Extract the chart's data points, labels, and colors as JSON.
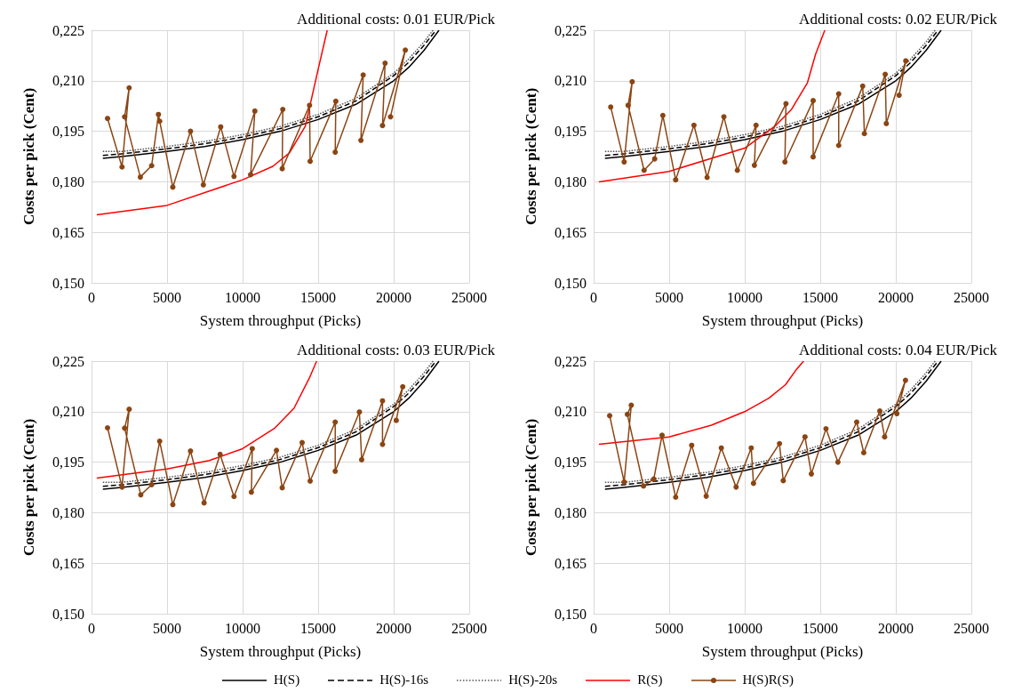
{
  "chart_data": [
    {
      "type": "line",
      "title": "Additional costs: 0.01 EUR/Pick",
      "xlabel": "System throughput (Picks)",
      "ylabel": "Costs per pick (Cent)",
      "xlim": [
        0,
        25000
      ],
      "xticks": [
        0,
        5000,
        10000,
        15000,
        20000,
        25000
      ],
      "ylim": [
        0.15,
        0.225
      ],
      "yticks": [
        {
          "value": 0.15,
          "label": "0,150"
        },
        {
          "value": 0.165,
          "label": "0,165"
        },
        {
          "value": 0.18,
          "label": "0,180"
        },
        {
          "value": 0.195,
          "label": "0,195"
        },
        {
          "value": 0.21,
          "label": "0,210"
        },
        {
          "value": 0.225,
          "label": "0,225"
        }
      ],
      "grid": true,
      "legend": "bottom",
      "x": [
        750,
        2000,
        5000,
        7500,
        10000,
        12500,
        15000,
        17500,
        20000,
        21000,
        22000,
        23000
      ],
      "series": [
        {
          "name": "H(S)",
          "color": "#000000",
          "line_style": "solid",
          "marker": "none",
          "values": [
            0.187,
            0.1875,
            0.189,
            0.1905,
            0.1925,
            0.195,
            0.1985,
            0.203,
            0.21,
            0.214,
            0.219,
            0.225
          ]
        },
        {
          "name": "H(S)-16s",
          "color": "#000000",
          "line_style": "dashed",
          "marker": "none",
          "x": [
            750,
            2000,
            5000,
            7500,
            10000,
            12500,
            15000,
            17500,
            20000,
            21000,
            22000,
            22800
          ],
          "values": [
            0.1878,
            0.1883,
            0.1898,
            0.1913,
            0.1933,
            0.1958,
            0.1993,
            0.204,
            0.2115,
            0.2155,
            0.2205,
            0.225
          ]
        },
        {
          "name": "H(S)-20s",
          "color": "#555555",
          "line_style": "dotted",
          "marker": "none",
          "x": [
            750,
            2000,
            5000,
            7500,
            10000,
            12500,
            15000,
            17500,
            20000,
            21000,
            22000,
            22600
          ],
          "values": [
            0.189,
            0.189,
            0.1905,
            0.192,
            0.194,
            0.1965,
            0.2,
            0.2048,
            0.2122,
            0.2165,
            0.2215,
            0.225
          ]
        },
        {
          "name": "R(S)",
          "color": "#ff0000",
          "line_style": "solid",
          "marker": "none",
          "x": [
            350,
            5000,
            10000,
            12000,
            13100,
            14150,
            15000,
            15600
          ],
          "values": [
            0.1702,
            0.173,
            0.1806,
            0.1846,
            0.1886,
            0.1965,
            0.2134,
            0.225
          ]
        },
        {
          "name": "H(S)R(S)",
          "color": "#8b4513",
          "line_style": "solid",
          "marker": "circle",
          "x": [
            1060,
            2020,
            2490,
            2190,
            3230,
            3980,
            4430,
            4510,
            5380,
            6550,
            7400,
            8550,
            9430,
            10810,
            10530,
            12660,
            12620,
            14430,
            14470,
            16170,
            16130,
            17980,
            17830,
            19430,
            19260,
            20770,
            19790
          ],
          "values": [
            0.1988,
            0.1844,
            0.2079,
            0.1993,
            0.1814,
            0.1848,
            0.2,
            0.198,
            0.1784,
            0.195,
            0.1791,
            0.1963,
            0.1816,
            0.201,
            0.1821,
            0.2015,
            0.1839,
            0.2027,
            0.1861,
            0.2039,
            0.1888,
            0.2117,
            0.1923,
            0.2152,
            0.1967,
            0.2191,
            0.1993
          ]
        }
      ]
    },
    {
      "type": "line",
      "title": "Additional costs: 0.02 EUR/Pick",
      "xlabel": "System throughput (Picks)",
      "ylabel": "Costs per pick (Cent)",
      "xlim": [
        0,
        25000
      ],
      "xticks": [
        0,
        5000,
        10000,
        15000,
        20000,
        25000
      ],
      "ylim": [
        0.15,
        0.225
      ],
      "yticks": [
        {
          "value": 0.15,
          "label": "0,150"
        },
        {
          "value": 0.165,
          "label": "0,165"
        },
        {
          "value": 0.18,
          "label": "0,180"
        },
        {
          "value": 0.195,
          "label": "0,195"
        },
        {
          "value": 0.21,
          "label": "0,210"
        },
        {
          "value": 0.225,
          "label": "0,225"
        }
      ],
      "grid": true,
      "legend": "bottom",
      "x": [
        750,
        2000,
        5000,
        7500,
        10000,
        12500,
        15000,
        17500,
        20000,
        21000,
        22000,
        23000
      ],
      "series": [
        {
          "name": "H(S)",
          "color": "#000000",
          "line_style": "solid",
          "marker": "none",
          "values": [
            0.187,
            0.1875,
            0.189,
            0.1905,
            0.1925,
            0.195,
            0.1985,
            0.203,
            0.21,
            0.214,
            0.219,
            0.225
          ]
        },
        {
          "name": "H(S)-16s",
          "color": "#000000",
          "line_style": "dashed",
          "marker": "none",
          "x": [
            750,
            2000,
            5000,
            7500,
            10000,
            12500,
            15000,
            17500,
            20000,
            21000,
            22000,
            22800
          ],
          "values": [
            0.1878,
            0.1883,
            0.1898,
            0.1913,
            0.1933,
            0.1958,
            0.1993,
            0.204,
            0.2115,
            0.2155,
            0.2205,
            0.225
          ]
        },
        {
          "name": "H(S)-20s",
          "color": "#555555",
          "line_style": "dotted",
          "marker": "none",
          "x": [
            750,
            2000,
            5000,
            7500,
            10000,
            12500,
            15000,
            17500,
            20000,
            21000,
            22000,
            22600
          ],
          "values": [
            0.189,
            0.189,
            0.1905,
            0.192,
            0.194,
            0.1965,
            0.2,
            0.2048,
            0.2122,
            0.2165,
            0.2215,
            0.225
          ]
        },
        {
          "name": "R(S)",
          "color": "#ff0000",
          "line_style": "solid",
          "marker": "none",
          "x": [
            350,
            5000,
            10000,
            12000,
            13100,
            14150,
            14700,
            15300
          ],
          "values": [
            0.18,
            0.1831,
            0.19,
            0.1965,
            0.2015,
            0.2094,
            0.218,
            0.225
          ]
        },
        {
          "name": "H(S)R(S)",
          "color": "#8b4513",
          "line_style": "solid",
          "marker": "circle",
          "x": [
            1130,
            2020,
            2550,
            2280,
            3340,
            4040,
            4580,
            5430,
            6640,
            7510,
            8620,
            9510,
            10750,
            10640,
            12730,
            12660,
            14530,
            14530,
            16220,
            16220,
            17810,
            17920,
            19300,
            19370,
            20660,
            20220
          ],
          "values": [
            0.2022,
            0.1859,
            0.2097,
            0.2027,
            0.1834,
            0.1868,
            0.1997,
            0.1806,
            0.1968,
            0.1813,
            0.1993,
            0.1834,
            0.1968,
            0.1849,
            0.2032,
            0.1859,
            0.2041,
            0.1874,
            0.2061,
            0.1908,
            0.2084,
            0.1943,
            0.2119,
            0.1973,
            0.2159,
            0.2057
          ]
        }
      ]
    },
    {
      "type": "line",
      "title": "Additional costs: 0.03 EUR/Pick",
      "xlabel": "System throughput (Picks)",
      "ylabel": "Costs per pick (Cent)",
      "xlim": [
        0,
        25000
      ],
      "xticks": [
        0,
        5000,
        10000,
        15000,
        20000,
        25000
      ],
      "ylim": [
        0.15,
        0.225
      ],
      "yticks": [
        {
          "value": 0.15,
          "label": "0,150"
        },
        {
          "value": 0.165,
          "label": "0,165"
        },
        {
          "value": 0.18,
          "label": "0,180"
        },
        {
          "value": 0.195,
          "label": "0,195"
        },
        {
          "value": 0.21,
          "label": "0,210"
        },
        {
          "value": 0.225,
          "label": "0,225"
        }
      ],
      "grid": true,
      "legend": "bottom",
      "x": [
        750,
        2000,
        5000,
        7500,
        10000,
        12500,
        15000,
        17500,
        20000,
        21000,
        22000,
        23000
      ],
      "series": [
        {
          "name": "H(S)",
          "color": "#000000",
          "line_style": "solid",
          "marker": "none",
          "values": [
            0.187,
            0.1875,
            0.189,
            0.1905,
            0.1925,
            0.195,
            0.1985,
            0.203,
            0.21,
            0.214,
            0.219,
            0.225
          ]
        },
        {
          "name": "H(S)-16s",
          "color": "#000000",
          "line_style": "dashed",
          "marker": "none",
          "x": [
            750,
            2000,
            5000,
            7500,
            10000,
            12500,
            15000,
            17500,
            20000,
            21000,
            22000,
            22800
          ],
          "values": [
            0.1878,
            0.1883,
            0.1898,
            0.1913,
            0.1933,
            0.1958,
            0.1993,
            0.204,
            0.2115,
            0.2155,
            0.2205,
            0.225
          ]
        },
        {
          "name": "H(S)-20s",
          "color": "#555555",
          "line_style": "dotted",
          "marker": "none",
          "x": [
            750,
            2000,
            5000,
            7500,
            10000,
            12500,
            15000,
            17500,
            20000,
            21000,
            22000,
            22600
          ],
          "values": [
            0.189,
            0.189,
            0.1905,
            0.192,
            0.194,
            0.1965,
            0.2,
            0.2048,
            0.2122,
            0.2165,
            0.2215,
            0.225
          ]
        },
        {
          "name": "R(S)",
          "color": "#ff0000",
          "line_style": "solid",
          "marker": "none",
          "x": [
            350,
            5000,
            7800,
            10000,
            12100,
            13400,
            14400,
            14900
          ],
          "values": [
            0.1903,
            0.193,
            0.1955,
            0.199,
            0.205,
            0.211,
            0.2198,
            0.225
          ]
        },
        {
          "name": "H(S)R(S)",
          "color": "#8b4513",
          "line_style": "solid",
          "marker": "circle",
          "x": [
            1060,
            2020,
            2490,
            2190,
            3260,
            3980,
            4510,
            5380,
            6550,
            7450,
            8510,
            9430,
            10640,
            10580,
            12240,
            12620,
            13940,
            14470,
            16130,
            16130,
            17730,
            17880,
            19260,
            19260,
            20600,
            20170
          ],
          "values": [
            0.2052,
            0.1876,
            0.2107,
            0.2051,
            0.1853,
            0.1883,
            0.2012,
            0.1824,
            0.1983,
            0.1829,
            0.1973,
            0.1848,
            0.199,
            0.1861,
            0.1985,
            0.1874,
            0.2008,
            0.1894,
            0.2069,
            0.1923,
            0.2099,
            0.1957,
            0.2132,
            0.2003,
            0.2174,
            0.2074
          ]
        }
      ]
    },
    {
      "type": "line",
      "title": "Additional costs: 0.04 EUR/Pick",
      "xlabel": "System throughput (Picks)",
      "ylabel": "Costs per pick (Cent)",
      "xlim": [
        0,
        25000
      ],
      "xticks": [
        0,
        5000,
        10000,
        15000,
        20000,
        25000
      ],
      "ylim": [
        0.15,
        0.225
      ],
      "yticks": [
        {
          "value": 0.15,
          "label": "0,150"
        },
        {
          "value": 0.165,
          "label": "0,165"
        },
        {
          "value": 0.18,
          "label": "0,180"
        },
        {
          "value": 0.195,
          "label": "0,195"
        },
        {
          "value": 0.21,
          "label": "0,210"
        },
        {
          "value": 0.225,
          "label": "0,225"
        }
      ],
      "grid": true,
      "legend": "bottom",
      "x": [
        750,
        2000,
        5000,
        7500,
        10000,
        12500,
        15000,
        17500,
        20000,
        21000,
        22000,
        23000
      ],
      "series": [
        {
          "name": "H(S)",
          "color": "#000000",
          "line_style": "solid",
          "marker": "none",
          "values": [
            0.187,
            0.1875,
            0.189,
            0.1905,
            0.1925,
            0.195,
            0.1985,
            0.203,
            0.21,
            0.214,
            0.219,
            0.225
          ]
        },
        {
          "name": "H(S)-16s",
          "color": "#000000",
          "line_style": "dashed",
          "marker": "none",
          "x": [
            750,
            2000,
            5000,
            7500,
            10000,
            12500,
            15000,
            17500,
            20000,
            21000,
            22000,
            22800
          ],
          "values": [
            0.1878,
            0.1883,
            0.1898,
            0.1913,
            0.1933,
            0.1958,
            0.1993,
            0.204,
            0.2115,
            0.2155,
            0.2205,
            0.225
          ]
        },
        {
          "name": "H(S)-20s",
          "color": "#555555",
          "line_style": "dotted",
          "marker": "none",
          "x": [
            750,
            2000,
            5000,
            7500,
            10000,
            12500,
            15000,
            17500,
            20000,
            21000,
            22000,
            22600
          ],
          "values": [
            0.189,
            0.189,
            0.1905,
            0.192,
            0.194,
            0.1965,
            0.2,
            0.2048,
            0.2122,
            0.2165,
            0.2215,
            0.225
          ]
        },
        {
          "name": "R(S)",
          "color": "#ff0000",
          "line_style": "solid",
          "marker": "none",
          "x": [
            350,
            5000,
            7800,
            10000,
            11600,
            12700,
            13400,
            13900
          ],
          "values": [
            0.2003,
            0.2025,
            0.206,
            0.21,
            0.214,
            0.218,
            0.2224,
            0.225
          ]
        },
        {
          "name": "H(S)R(S)",
          "color": "#8b4513",
          "line_style": "solid",
          "marker": "circle",
          "x": [
            1060,
            2020,
            2490,
            2230,
            3300,
            3980,
            4530,
            5430,
            6490,
            7450,
            8450,
            9430,
            10430,
            10580,
            12300,
            12550,
            13990,
            14410,
            15380,
            16170,
            17410,
            17880,
            18940,
            19260,
            20640,
            20070
          ],
          "values": [
            0.2088,
            0.1891,
            0.2119,
            0.2092,
            0.1879,
            0.19,
            0.203,
            0.1846,
            0.2,
            0.1849,
            0.1992,
            0.1876,
            0.1992,
            0.1887,
            0.2005,
            0.1895,
            0.2025,
            0.1915,
            0.2049,
            0.195,
            0.2069,
            0.1978,
            0.2102,
            0.2025,
            0.2193,
            0.2094
          ]
        }
      ]
    }
  ]
}
